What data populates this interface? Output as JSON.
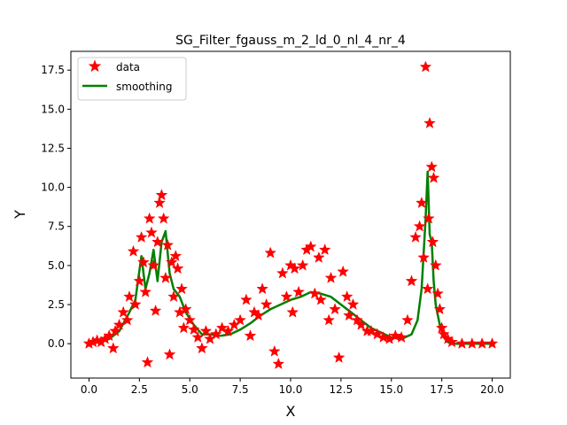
{
  "chart_data": {
    "type": "scatter",
    "title": "SG_Filter_fgauss_m_2_ld_0_nl_4_nr_4",
    "xlabel": "X",
    "ylabel": "Y",
    "xlim": [
      -0.9,
      20.9
    ],
    "ylim": [
      -2.2,
      18.7
    ],
    "xticks": [
      0.0,
      2.5,
      5.0,
      7.5,
      10.0,
      12.5,
      15.0,
      17.5,
      20.0
    ],
    "xtick_labels": [
      "0.0",
      "2.5",
      "5.0",
      "7.5",
      "10.0",
      "12.5",
      "15.0",
      "17.5",
      "20.0"
    ],
    "yticks": [
      0.0,
      2.5,
      5.0,
      7.5,
      10.0,
      12.5,
      15.0,
      17.5
    ],
    "ytick_labels": [
      "0.0",
      "2.5",
      "5.0",
      "7.5",
      "10.0",
      "12.5",
      "15.0",
      "17.5"
    ],
    "grid": false,
    "legend_position": "top-left",
    "legend": [
      "data",
      "smoothing"
    ],
    "colors": {
      "data": "#ff0000",
      "smoothing": "#008000"
    },
    "series": [
      {
        "name": "data",
        "kind": "scatter",
        "marker": "star",
        "x": [
          0.0,
          0.2,
          0.4,
          0.6,
          0.8,
          1.0,
          1.2,
          1.3,
          1.5,
          1.7,
          1.9,
          2.0,
          2.2,
          2.3,
          2.5,
          2.6,
          2.7,
          2.8,
          2.9,
          3.0,
          3.1,
          3.2,
          3.3,
          3.4,
          3.5,
          3.6,
          3.7,
          3.8,
          3.9,
          4.0,
          4.1,
          4.2,
          4.3,
          4.4,
          4.5,
          4.6,
          4.7,
          4.8,
          5.0,
          5.2,
          5.4,
          5.6,
          5.8,
          6.0,
          6.3,
          6.6,
          6.9,
          7.2,
          7.5,
          7.8,
          8.0,
          8.2,
          8.4,
          8.6,
          8.8,
          9.0,
          9.2,
          9.4,
          9.6,
          9.8,
          10.0,
          10.1,
          10.2,
          10.4,
          10.6,
          10.8,
          11.0,
          11.2,
          11.4,
          11.5,
          11.7,
          11.9,
          12.0,
          12.2,
          12.4,
          12.6,
          12.8,
          12.9,
          13.1,
          13.3,
          13.5,
          13.8,
          14.0,
          14.3,
          14.6,
          14.9,
          15.2,
          15.5,
          15.8,
          16.0,
          16.2,
          16.4,
          16.5,
          16.6,
          16.7,
          16.8,
          16.85,
          16.9,
          17.0,
          17.05,
          17.1,
          17.2,
          17.3,
          17.4,
          17.5,
          17.6,
          17.8,
          18.0,
          18.5,
          19.0,
          19.5,
          20.0
        ],
        "y": [
          0.0,
          0.1,
          0.2,
          0.1,
          0.3,
          0.5,
          -0.3,
          0.8,
          1.2,
          2.0,
          1.5,
          3.0,
          5.9,
          2.5,
          4.0,
          6.8,
          5.2,
          3.3,
          -1.2,
          8.0,
          7.1,
          5.0,
          2.1,
          6.5,
          9.0,
          9.5,
          8.0,
          4.2,
          6.3,
          -0.7,
          5.2,
          3.0,
          5.6,
          4.8,
          2.0,
          3.5,
          1.0,
          2.2,
          1.5,
          0.9,
          0.4,
          -0.3,
          0.8,
          0.3,
          0.6,
          1.0,
          0.8,
          1.2,
          1.5,
          2.8,
          0.5,
          2.0,
          1.8,
          3.5,
          2.5,
          5.8,
          -0.5,
          -1.3,
          4.5,
          3.0,
          5.0,
          2.0,
          4.8,
          3.3,
          5.0,
          6.0,
          6.2,
          3.2,
          5.5,
          2.8,
          6.0,
          1.5,
          4.2,
          2.2,
          -0.9,
          4.6,
          3.0,
          1.8,
          2.5,
          1.5,
          1.2,
          0.8,
          0.8,
          0.6,
          0.4,
          0.3,
          0.5,
          0.4,
          1.5,
          4.0,
          6.8,
          7.5,
          9.0,
          5.5,
          17.7,
          3.5,
          8.0,
          14.1,
          11.3,
          6.5,
          10.6,
          5.0,
          3.2,
          2.2,
          1.0,
          0.6,
          0.3,
          0.1,
          0.0,
          0.0,
          0.0,
          0.0
        ]
      },
      {
        "name": "smoothing",
        "kind": "line",
        "x": [
          0.0,
          0.5,
          1.0,
          1.5,
          2.0,
          2.3,
          2.6,
          2.8,
          3.0,
          3.2,
          3.4,
          3.6,
          3.8,
          4.0,
          4.2,
          4.5,
          4.8,
          5.2,
          5.6,
          6.0,
          6.5,
          7.0,
          7.5,
          8.0,
          8.5,
          9.0,
          9.5,
          10.0,
          10.5,
          11.0,
          11.5,
          12.0,
          12.5,
          13.0,
          13.5,
          14.0,
          14.5,
          15.0,
          15.5,
          16.0,
          16.3,
          16.5,
          16.7,
          16.8,
          16.9,
          17.0,
          17.1,
          17.2,
          17.4,
          17.6,
          17.8,
          18.0,
          18.5,
          19.0,
          20.0
        ],
        "y": [
          0.0,
          0.1,
          0.3,
          0.8,
          2.0,
          2.8,
          5.6,
          3.5,
          4.5,
          6.0,
          4.0,
          6.5,
          7.2,
          4.5,
          3.5,
          3.0,
          2.0,
          1.2,
          0.6,
          0.6,
          0.5,
          0.6,
          0.9,
          1.3,
          1.8,
          2.2,
          2.5,
          2.8,
          3.0,
          3.3,
          3.2,
          3.0,
          2.5,
          2.0,
          1.5,
          1.0,
          0.7,
          0.4,
          0.3,
          0.6,
          1.5,
          3.5,
          8.0,
          11.0,
          7.0,
          6.5,
          4.0,
          2.5,
          1.2,
          0.4,
          0.1,
          0.0,
          0.0,
          0.0,
          0.0
        ]
      }
    ]
  }
}
